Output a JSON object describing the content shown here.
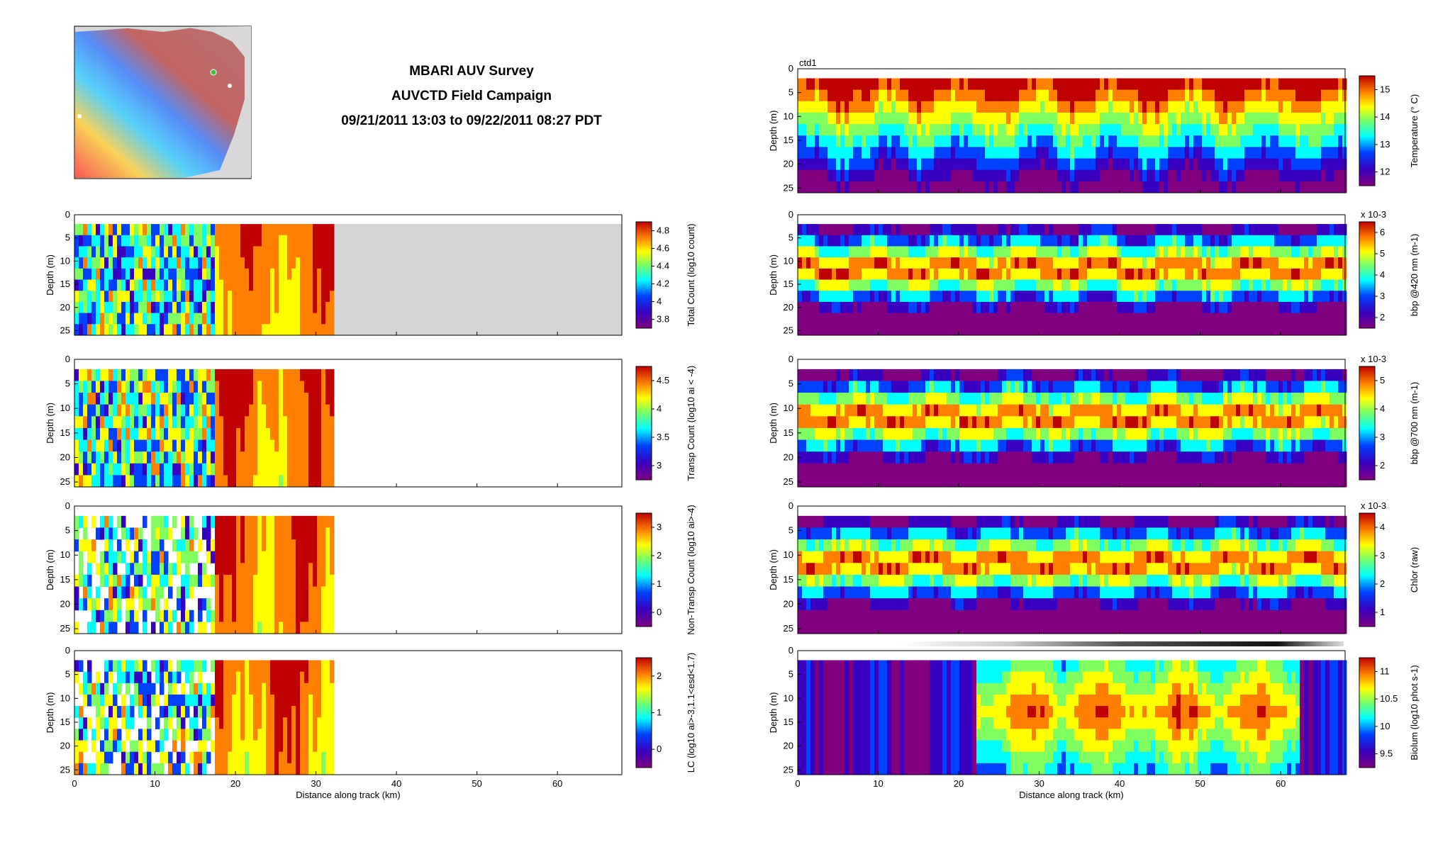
{
  "title": {
    "line1": "MBARI AUV Survey",
    "line2": "AUVCTD Field Campaign",
    "line3": "09/21/2011 13:03 to 09/22/2011 08:27 PDT"
  },
  "map_inset": {
    "description_icon": "monterey-bay-map"
  },
  "chart_data": [
    {
      "type": "heatmap",
      "id": "total-count",
      "xlabel": "",
      "ylabel": "Depth (m)",
      "xlim": [
        0,
        68
      ],
      "ylim": [
        0,
        26
      ],
      "data_xmax": 32,
      "yticks": [
        0,
        5,
        10,
        15,
        20,
        25
      ],
      "xticks": [],
      "colorbar": {
        "label": "Total Count (log10 count)",
        "ticks": [
          "3.8",
          "4",
          "4.2",
          "4.4",
          "4.6",
          "4.8"
        ],
        "multiplier": ""
      }
    },
    {
      "type": "heatmap",
      "id": "transp-count",
      "xlabel": "",
      "ylabel": "Depth (m)",
      "xlim": [
        0,
        68
      ],
      "ylim": [
        0,
        26
      ],
      "data_xmax": 32,
      "yticks": [
        0,
        5,
        10,
        15,
        20,
        25
      ],
      "xticks": [],
      "colorbar": {
        "label": "Transp Count (log10 ai < -4)",
        "ticks": [
          "3",
          "3.5",
          "4",
          "4.5"
        ],
        "multiplier": ""
      }
    },
    {
      "type": "heatmap",
      "id": "nontransp-count",
      "xlabel": "",
      "ylabel": "Depth (m)",
      "xlim": [
        0,
        68
      ],
      "ylim": [
        0,
        26
      ],
      "data_xmax": 32,
      "yticks": [
        0,
        5,
        10,
        15,
        20,
        25
      ],
      "xticks": [],
      "colorbar": {
        "label": "Non-Transp Count (log10 ai>-4)",
        "ticks": [
          "0",
          "1",
          "2",
          "3"
        ],
        "multiplier": ""
      }
    },
    {
      "type": "heatmap",
      "id": "lc",
      "xlabel": "Distance along track (km)",
      "ylabel": "Depth (m)",
      "xlim": [
        0,
        68
      ],
      "ylim": [
        0,
        26
      ],
      "data_xmax": 32,
      "yticks": [
        0,
        5,
        10,
        15,
        20,
        25
      ],
      "xticks": [
        0,
        10,
        20,
        30,
        40,
        50,
        60
      ],
      "colorbar": {
        "label": "LC (log10 ai>-3,1.1<esd<1.7)",
        "ticks": [
          "0",
          "1",
          "2"
        ],
        "multiplier": ""
      }
    },
    {
      "type": "heatmap",
      "id": "temperature",
      "xlabel": "",
      "ylabel": "Depth (m)",
      "annotation": "ctd1",
      "xlim": [
        0,
        68
      ],
      "ylim": [
        0,
        26
      ],
      "data_xmax": 68,
      "yticks": [
        0,
        5,
        10,
        15,
        20,
        25
      ],
      "xticks": [],
      "colorbar": {
        "label": "Temperature (° C)",
        "ticks": [
          "12",
          "13",
          "14",
          "15"
        ],
        "multiplier": ""
      }
    },
    {
      "type": "heatmap",
      "id": "bbp420",
      "xlabel": "",
      "ylabel": "Depth (m)",
      "xlim": [
        0,
        68
      ],
      "ylim": [
        0,
        26
      ],
      "data_xmax": 68,
      "yticks": [
        0,
        5,
        10,
        15,
        20,
        25
      ],
      "xticks": [],
      "colorbar": {
        "label": "bbp @420 nm (m-1)",
        "ticks": [
          "2",
          "3",
          "4",
          "5",
          "6"
        ],
        "multiplier": "x 10-3"
      }
    },
    {
      "type": "heatmap",
      "id": "bbp700",
      "xlabel": "",
      "ylabel": "Depth (m)",
      "xlim": [
        0,
        68
      ],
      "ylim": [
        0,
        26
      ],
      "data_xmax": 68,
      "yticks": [
        0,
        5,
        10,
        15,
        20,
        25
      ],
      "xticks": [],
      "colorbar": {
        "label": "bbp @700 nm (m-1)",
        "ticks": [
          "2",
          "3",
          "4",
          "5"
        ],
        "multiplier": "x 10-3"
      }
    },
    {
      "type": "heatmap",
      "id": "chlor",
      "xlabel": "",
      "ylabel": "Depth (m)",
      "xlim": [
        0,
        68
      ],
      "ylim": [
        0,
        26
      ],
      "data_xmax": 68,
      "yticks": [
        0,
        5,
        10,
        15,
        20,
        25
      ],
      "xticks": [],
      "colorbar": {
        "label": "Chlor (raw)",
        "ticks": [
          "1",
          "2",
          "3",
          "4"
        ],
        "multiplier": "x 10-3"
      }
    },
    {
      "type": "heatmap",
      "id": "biolum",
      "xlabel": "Distance along track (km)",
      "ylabel": "Depth (m)",
      "xlim": [
        0,
        68
      ],
      "ylim": [
        0,
        26
      ],
      "data_xmax": 68,
      "yticks": [
        0,
        5,
        10,
        15,
        20,
        25
      ],
      "xticks": [
        0,
        10,
        20,
        30,
        40,
        50,
        60
      ],
      "colorbar": {
        "label": "Biolum (log10 phot s-1)",
        "ticks": [
          "9.5",
          "10",
          "10.5",
          "11"
        ],
        "multiplier": ""
      }
    }
  ]
}
